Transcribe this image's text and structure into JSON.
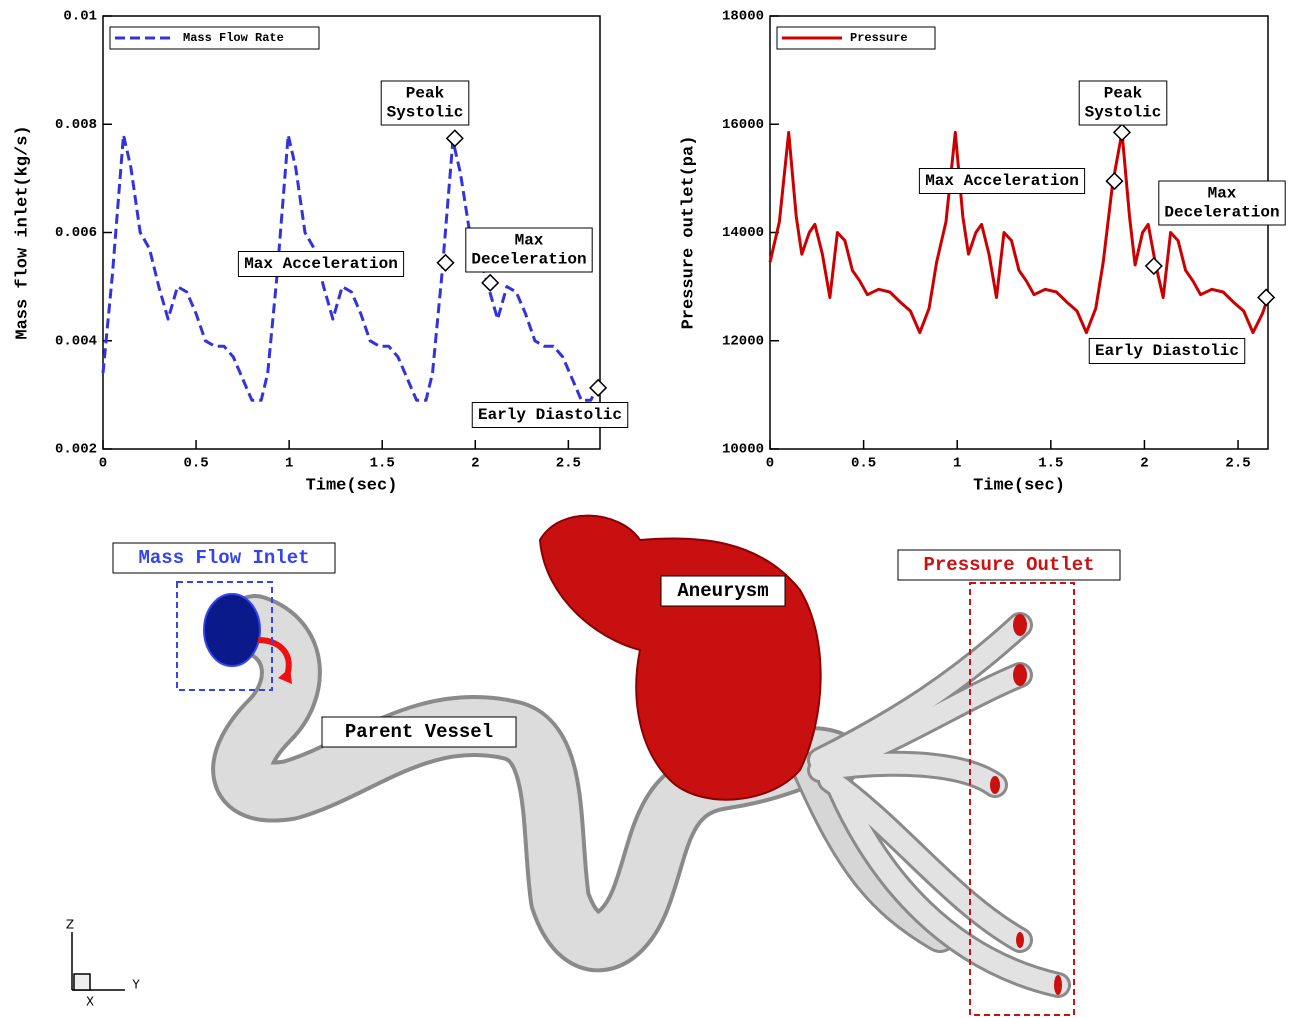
{
  "chart_data": [
    {
      "type": "line",
      "x_label": "Time(sec)",
      "y_label": "Mass flow inlet(kg/s)",
      "xlim": [
        0,
        2.67
      ],
      "xticks": [
        0,
        0.5,
        1,
        1.5,
        2,
        2.5
      ],
      "ylim": [
        0.002,
        0.01
      ],
      "yticks": [
        0.002,
        0.004,
        0.006,
        0.008,
        0.01
      ],
      "legend": "top-left",
      "line_style": "dashed",
      "x": [
        0,
        0.05,
        0.11,
        0.15,
        0.2,
        0.25,
        0.3,
        0.35,
        0.4,
        0.45,
        0.5,
        0.55,
        0.6,
        0.65,
        0.7,
        0.75,
        0.8,
        0.85,
        0.885,
        0.935,
        0.995,
        1.035,
        1.085,
        1.135,
        1.185,
        1.235,
        1.285,
        1.335,
        1.385,
        1.435,
        1.485,
        1.535,
        1.585,
        1.635,
        1.685,
        1.735,
        1.77,
        1.82,
        1.88,
        1.92,
        1.97,
        2.02,
        2.07,
        2.12,
        2.17,
        2.22,
        2.27,
        2.32,
        2.37,
        2.42,
        2.47,
        2.52,
        2.57,
        2.62,
        2.65
      ],
      "series": [
        {
          "name": "Mass Flow Rate",
          "color": "#3333dd",
          "values": [
            0.0034,
            0.0052,
            0.0078,
            0.0072,
            0.006,
            0.0057,
            0.005,
            0.0044,
            0.005,
            0.0049,
            0.0045,
            0.004,
            0.0039,
            0.0039,
            0.0037,
            0.0033,
            0.0029,
            0.0029,
            0.0034,
            0.0052,
            0.0078,
            0.0072,
            0.006,
            0.0057,
            0.005,
            0.0044,
            0.005,
            0.0049,
            0.0045,
            0.004,
            0.0039,
            0.0039,
            0.0037,
            0.0033,
            0.0029,
            0.0029,
            0.0034,
            0.0052,
            0.0077,
            0.0071,
            0.006,
            0.0056,
            0.005,
            0.0044,
            0.005,
            0.0049,
            0.0045,
            0.004,
            0.0039,
            0.0039,
            0.0037,
            0.0033,
            0.0029,
            0.0029,
            0.0031
          ]
        }
      ],
      "annotations": [
        {
          "label": [
            "Peak",
            "Systolic"
          ],
          "x": 1.89,
          "y": 0.00774
        },
        {
          "label": [
            "Max Acceleration"
          ],
          "x": 1.84,
          "y": 0.00544
        },
        {
          "label": [
            "Max",
            "Deceleration"
          ],
          "x": 2.08,
          "y": 0.00507
        },
        {
          "label": [
            "Early Diastolic"
          ],
          "x": 2.66,
          "y": 0.00313
        }
      ]
    },
    {
      "type": "line",
      "x_label": "Time(sec)",
      "y_label": "Pressure outlet(pa)",
      "xlim": [
        0,
        2.66
      ],
      "xticks": [
        0,
        0.5,
        1,
        1.5,
        2,
        2.5
      ],
      "ylim": [
        10000,
        18000
      ],
      "yticks": [
        10000,
        12000,
        14000,
        16000,
        18000
      ],
      "legend": "top-left",
      "line_style": "solid",
      "x": [
        0,
        0.05,
        0.1,
        0.14,
        0.17,
        0.21,
        0.24,
        0.28,
        0.32,
        0.36,
        0.4,
        0.44,
        0.48,
        0.52,
        0.58,
        0.64,
        0.7,
        0.75,
        0.8,
        0.85,
        0.89,
        0.94,
        0.99,
        1.03,
        1.06,
        1.1,
        1.13,
        1.17,
        1.21,
        1.25,
        1.29,
        1.33,
        1.37,
        1.41,
        1.47,
        1.53,
        1.59,
        1.64,
        1.69,
        1.74,
        1.78,
        1.83,
        1.88,
        1.92,
        1.95,
        1.99,
        2.02,
        2.06,
        2.1,
        2.14,
        2.18,
        2.22,
        2.26,
        2.3,
        2.36,
        2.42,
        2.48,
        2.53,
        2.58,
        2.63,
        2.66
      ],
      "series": [
        {
          "name": "Pressure",
          "color": "#cc0000",
          "values": [
            13450,
            14200,
            15850,
            14300,
            13600,
            14000,
            14150,
            13600,
            12800,
            14000,
            13850,
            13300,
            13100,
            12850,
            12950,
            12900,
            12700,
            12550,
            12150,
            12600,
            13450,
            14200,
            15850,
            14300,
            13600,
            14000,
            14150,
            13600,
            12800,
            14000,
            13850,
            13300,
            13100,
            12850,
            12950,
            12900,
            12700,
            12550,
            12150,
            12600,
            13450,
            14900,
            15850,
            14300,
            13400,
            14000,
            14150,
            13400,
            12800,
            14000,
            13850,
            13300,
            13100,
            12850,
            12950,
            12900,
            12700,
            12550,
            12150,
            12500,
            12800
          ]
        }
      ],
      "annotations": [
        {
          "label": [
            "Max Acceleration"
          ],
          "x": 1.84,
          "y": 14950
        },
        {
          "label": [
            "Peak",
            "Systolic"
          ],
          "x": 1.88,
          "y": 15850
        },
        {
          "label": [
            "Max",
            "Deceleration"
          ],
          "x": 2.05,
          "y": 13380
        },
        {
          "label": [
            "Early Diastolic"
          ],
          "x": 2.65,
          "y": 12800
        }
      ]
    }
  ],
  "model": {
    "inlet": "Mass Flow Inlet",
    "aneurysm": "Aneurysm",
    "outlet": "Pressure Outlet",
    "vessel": "Parent Vessel",
    "axes": {
      "z": "Z",
      "y": "Y",
      "x": "X"
    }
  }
}
